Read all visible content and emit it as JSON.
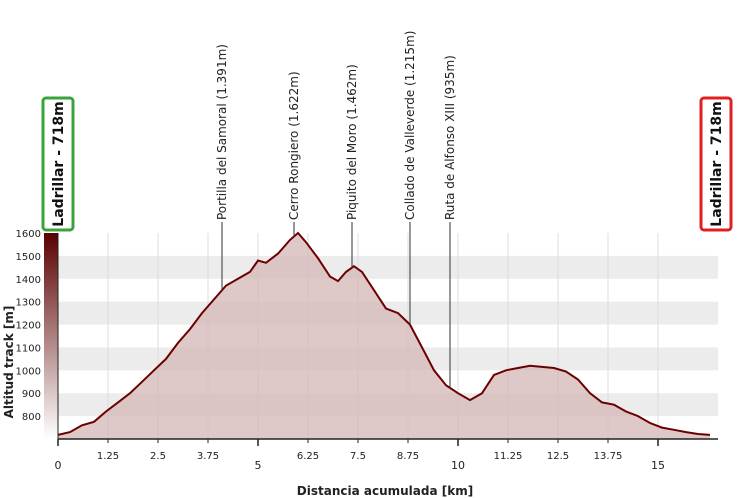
{
  "chart_data": {
    "type": "area",
    "xlabel": "Distancia acumulada [km]",
    "ylabel": "Altitud track [m]",
    "xlim": [
      0,
      16.5
    ],
    "ylim": [
      700,
      1600
    ],
    "x_ticks": [
      "0",
      "1.25",
      "2.5",
      "3.75",
      "5",
      "6.25",
      "7.5",
      "8.75",
      "10",
      "11.25",
      "12.5",
      "13.75",
      "15"
    ],
    "x_tick_values": [
      0,
      1.25,
      2.5,
      3.75,
      5,
      6.25,
      7.5,
      8.75,
      10,
      11.25,
      12.5,
      13.75,
      15
    ],
    "x_major_ticks": [
      "0",
      "5",
      "10",
      "15"
    ],
    "y_ticks": [
      "800",
      "900",
      "1000",
      "1100",
      "1200",
      "1300",
      "1400",
      "1500",
      "1600"
    ],
    "y_tick_values": [
      800,
      900,
      1000,
      1100,
      1200,
      1300,
      1400,
      1500,
      1600
    ],
    "grid": "horizontal bands",
    "colors": {
      "line": "#6b0000",
      "fill": "#d7baba",
      "band": "#ececec",
      "start_box": "#3ba33b",
      "end_box": "#e02020",
      "elevation_bar_top": "#5a0000",
      "elevation_bar_bottom": "#ffffff"
    },
    "series": [
      {
        "x": [
          0,
          0.3,
          0.6,
          0.9,
          1.2,
          1.5,
          1.8,
          2.1,
          2.4,
          2.7,
          3.0,
          3.3,
          3.6,
          3.9,
          4.2,
          4.5,
          4.8,
          5.0,
          5.2,
          5.5,
          5.8,
          6.0,
          6.2,
          6.5,
          6.8,
          7.0,
          7.2,
          7.4,
          7.6,
          7.9,
          8.2,
          8.5,
          8.8,
          9.1,
          9.4,
          9.7,
          10.0,
          10.3,
          10.6,
          10.9,
          11.2,
          11.5,
          11.8,
          12.1,
          12.4,
          12.7,
          13.0,
          13.3,
          13.6,
          13.9,
          14.2,
          14.5,
          14.8,
          15.1,
          15.4,
          15.7,
          16.0,
          16.3
        ],
        "values": [
          718,
          730,
          760,
          775,
          820,
          860,
          900,
          950,
          1000,
          1050,
          1120,
          1180,
          1250,
          1310,
          1370,
          1400,
          1430,
          1480,
          1470,
          1510,
          1570,
          1600,
          1560,
          1490,
          1410,
          1390,
          1430,
          1455,
          1430,
          1350,
          1270,
          1250,
          1200,
          1100,
          1000,
          935,
          900,
          870,
          900,
          980,
          1000,
          1010,
          1020,
          1015,
          1010,
          995,
          960,
          900,
          860,
          850,
          820,
          800,
          770,
          750,
          740,
          730,
          722,
          718
        ]
      }
    ],
    "annotations": [
      {
        "x": 4.1,
        "text": "Portilla del Samoral (1.391m)"
      },
      {
        "x": 5.9,
        "text": "Cerro Rongiero (1.622m)"
      },
      {
        "x": 7.35,
        "text": "Piquito del Moro (1.462m)"
      },
      {
        "x": 8.8,
        "text": "Collado de Valleverde (1.215m)"
      },
      {
        "x": 9.8,
        "text": "Ruta de Alfonso XIII (935m)"
      }
    ],
    "start_label": "Ladrillar - 718m",
    "end_label": "Ladrillar - 718m"
  }
}
